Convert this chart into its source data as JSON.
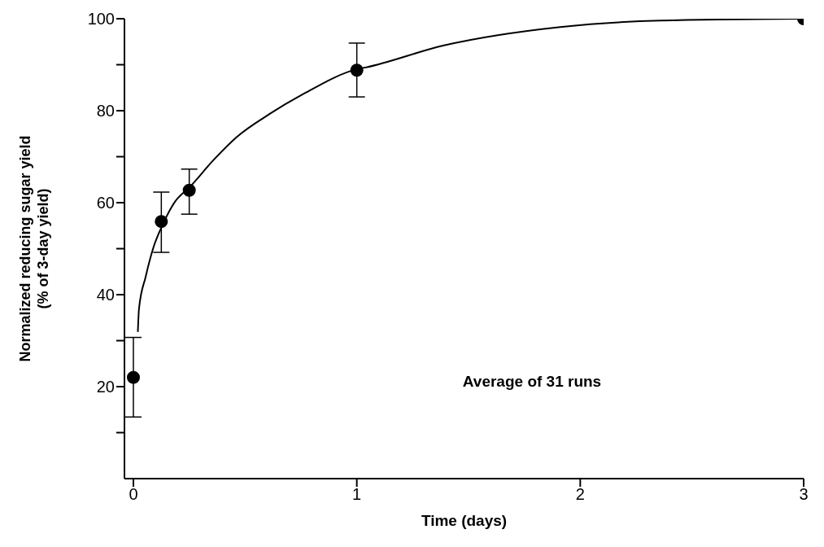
{
  "chart_data": {
    "type": "scatter",
    "xlabel": "Time (days)",
    "ylabel": "Normalized reducing sugar yield\n(% of 3-day yield)",
    "annotations": [
      "Average of 31 runs"
    ],
    "xlim": [
      -0.04,
      3
    ],
    "xticks": [
      0,
      1,
      2,
      3
    ],
    "ylim": [
      0,
      100
    ],
    "yticks": [
      {
        "value": 10,
        "label": null
      },
      20,
      {
        "value": 30,
        "label": null
      },
      40,
      {
        "value": 50,
        "label": null
      },
      60,
      {
        "value": 70,
        "label": null
      },
      80,
      {
        "value": 90,
        "label": null
      },
      100
    ],
    "series": [
      {
        "color": "#000000",
        "marker": "circle",
        "x": [
          0,
          0.125,
          0.25,
          1,
          3
        ],
        "values": [
          22,
          55.9,
          62.7,
          88.8,
          100
        ],
        "errors": [
          [
            13.4,
            30.7
          ],
          [
            49.2,
            62.3
          ],
          [
            57.5,
            67.3
          ],
          [
            83,
            94.7
          ],
          null
        ]
      },
      {
        "type": "line",
        "color": "#000000",
        "marker": "none",
        "line_style": "solid",
        "x": [
          0.02,
          0.025,
          0.055,
          0.09,
          0.129,
          0.186,
          0.254,
          0.361,
          0.463,
          0.61,
          0.756,
          1,
          1.04,
          1.39,
          1.91,
          2.36,
          3
        ],
        "values": [
          31.9,
          36.9,
          43.9,
          50.3,
          55,
          60.2,
          63.5,
          69.4,
          74.3,
          79.3,
          83.5,
          89,
          89.4,
          94.2,
          98.2,
          99.6,
          100
        ]
      }
    ]
  }
}
